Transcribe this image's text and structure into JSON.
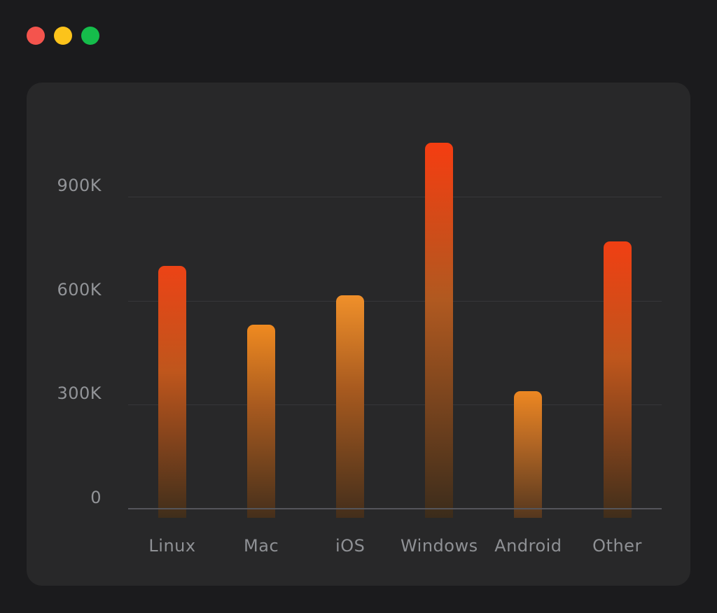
{
  "window": {
    "controls": [
      {
        "name": "close",
        "color": "#f4544d"
      },
      {
        "name": "minimize",
        "color": "#fcc31b"
      },
      {
        "name": "zoom",
        "color": "#15bd4b"
      }
    ]
  },
  "theme": {
    "outer_background": "#1b1b1d",
    "panel_background": "#282829",
    "gridline_color": "#37373a",
    "axis_line_color": "#55555b",
    "tick_label_color": "#929498",
    "category_label_color": "#8f9195"
  },
  "chart_data": {
    "type": "bar",
    "title": "",
    "xlabel": "",
    "ylabel": "",
    "legend": "none",
    "grid": "horizontal",
    "ylim": [
      0,
      1060000
    ],
    "y_ticks": [
      {
        "value": 0,
        "label": "0"
      },
      {
        "value": 300000,
        "label": "300K"
      },
      {
        "value": 600000,
        "label": "600K"
      },
      {
        "value": 900000,
        "label": "900K"
      }
    ],
    "categories": [
      "Linux",
      "Mac",
      "iOS",
      "Windows",
      "Android",
      "Other"
    ],
    "values": [
      700000,
      530000,
      615000,
      1055000,
      340000,
      770000
    ],
    "bar_gradients": [
      {
        "top": "#ec4316",
        "mid": "#bf561c",
        "bottom": "#3f2e1b"
      },
      {
        "top": "#ef8a20",
        "mid": "#a85a1f",
        "bottom": "#452f1b"
      },
      {
        "top": "#f0902a",
        "mid": "#a85a1f",
        "bottom": "#432e1b"
      },
      {
        "top": "#f53d11",
        "mid": "#b05920",
        "bottom": "#3b2c1b"
      },
      {
        "top": "#ed8722",
        "mid": "#b06524",
        "bottom": "#55371e"
      },
      {
        "top": "#f03f13",
        "mid": "#bf561c",
        "bottom": "#402e1b"
      }
    ]
  }
}
